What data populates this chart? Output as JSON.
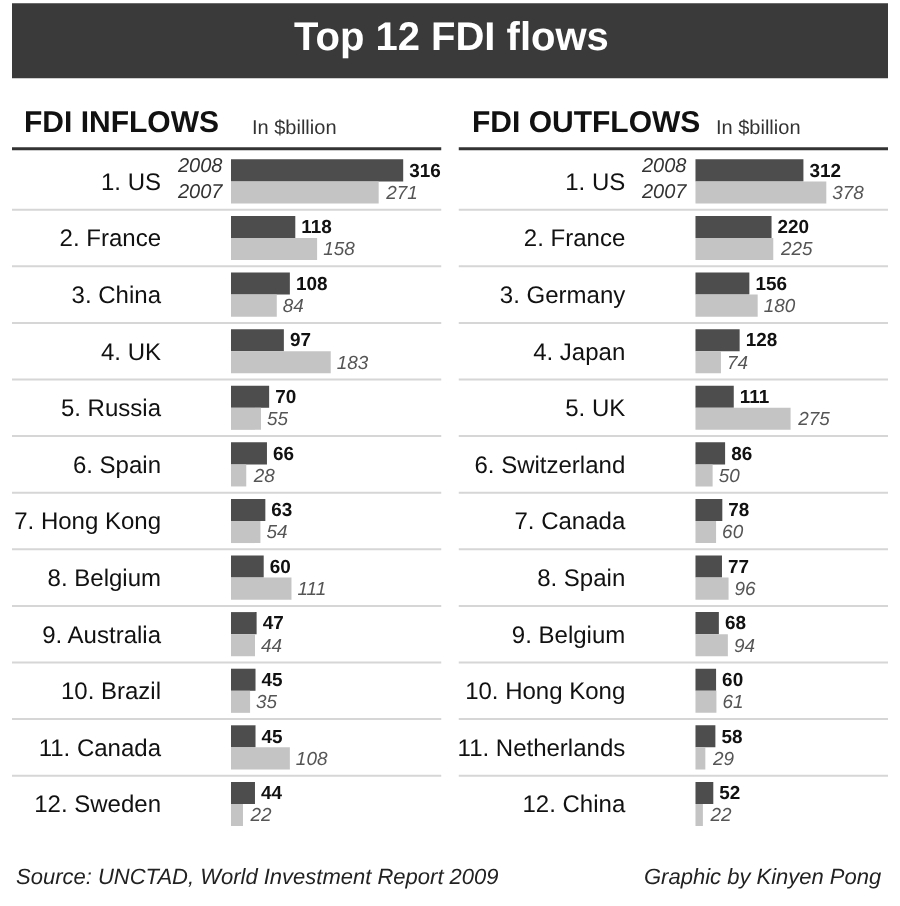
{
  "chart_data": [
    {
      "type": "bar",
      "orientation": "horizontal",
      "title": "FDI INFLOWS",
      "subtitle": "In $billion",
      "annotations": [
        "Top 12 FDI flows",
        "Source: UNCTAD, World Investment Report 2009"
      ],
      "categories": [
        "1. US",
        "2. France",
        "3. China",
        "4. UK",
        "5. Russia",
        "6. Spain",
        "7. Hong Kong",
        "8. Belgium",
        "9. Australia",
        "10. Brazil",
        "11. Canada",
        "12. Sweden"
      ],
      "series": [
        {
          "name": "2008",
          "color": "#4d4d4d",
          "values": [
            316,
            118,
            108,
            97,
            70,
            66,
            63,
            60,
            47,
            45,
            45,
            44
          ]
        },
        {
          "name": "2007",
          "color": "#c4c4c4",
          "values": [
            271,
            158,
            84,
            183,
            55,
            28,
            54,
            111,
            44,
            35,
            108,
            22
          ]
        }
      ],
      "data_labels": true
    },
    {
      "type": "bar",
      "orientation": "horizontal",
      "title": "FDI OUTFLOWS",
      "subtitle": "In $billion",
      "annotations": [
        "Graphic by Kinyen Pong"
      ],
      "categories": [
        "1. US",
        "2. France",
        "3. Germany",
        "4. Japan",
        "5. UK",
        "6. Switzerland",
        "7. Canada",
        "8. Spain",
        "9. Belgium",
        "10. Hong Kong",
        "11. Netherlands",
        "12. China"
      ],
      "series": [
        {
          "name": "2008",
          "color": "#4d4d4d",
          "values": [
            312,
            220,
            156,
            128,
            111,
            86,
            78,
            77,
            68,
            60,
            58,
            52
          ]
        },
        {
          "name": "2007",
          "color": "#c4c4c4",
          "values": [
            378,
            225,
            180,
            74,
            275,
            50,
            60,
            96,
            94,
            61,
            29,
            22
          ]
        }
      ],
      "data_labels": true
    }
  ]
}
